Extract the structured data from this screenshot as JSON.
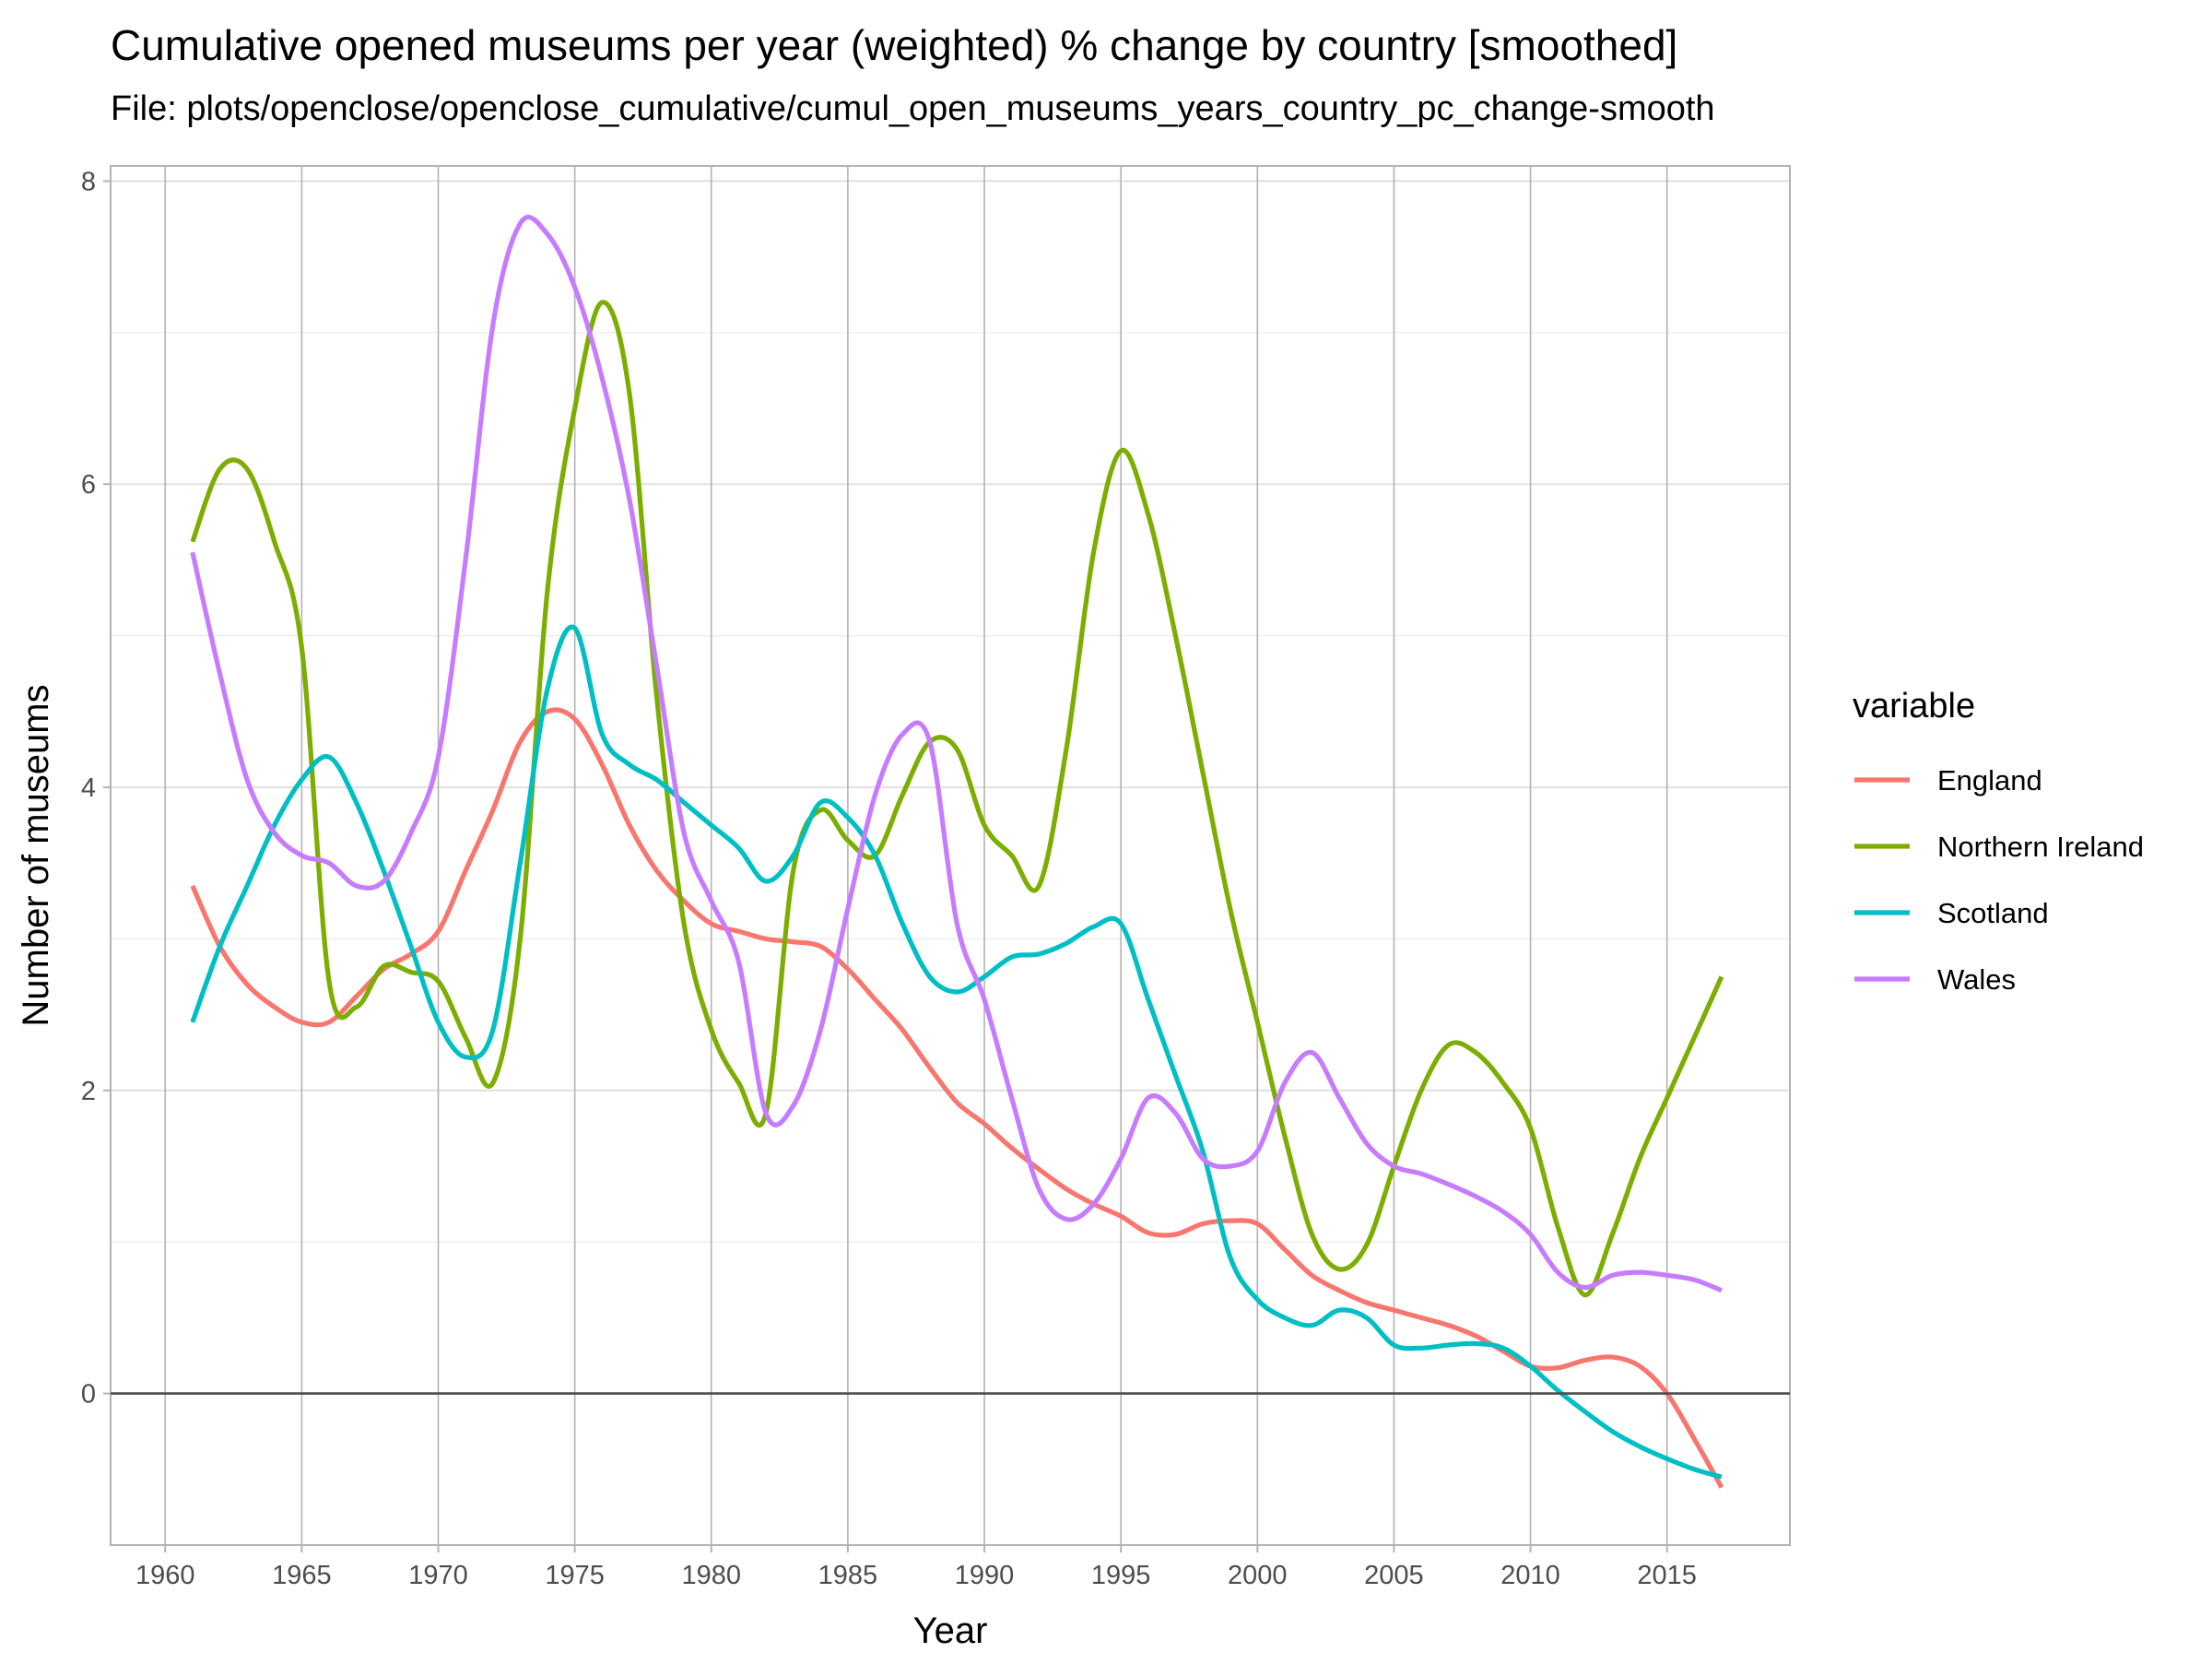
{
  "chart_data": {
    "type": "line",
    "title": "Cumulative opened museums per year (weighted) % change by country [smoothed]",
    "subtitle": "File: plots/openclose/openclose_cumulative/cumul_open_museums_years_country_pc_change-smooth",
    "xlabel": "Year",
    "ylabel": "Number of museums",
    "xlim": [
      1958,
      2019.5
    ],
    "ylim": [
      -1.0,
      8.1
    ],
    "x_ticks": [
      1960,
      1965,
      1970,
      1975,
      1980,
      1985,
      1990,
      1995,
      2000,
      2005,
      2010,
      2015
    ],
    "y_ticks": [
      0,
      2,
      4,
      6,
      8
    ],
    "grid": true,
    "legend": {
      "title": "variable",
      "position": "right"
    },
    "series": [
      {
        "name": "England",
        "color": "#F8766D",
        "x": [
          1961,
          1962,
          1963,
          1964,
          1965,
          1966,
          1967,
          1968,
          1969,
          1970,
          1971,
          1972,
          1973,
          1974,
          1975,
          1976,
          1977,
          1978,
          1979,
          1980,
          1981,
          1982,
          1983,
          1984,
          1985,
          1986,
          1987,
          1988,
          1989,
          1990,
          1991,
          1992,
          1993,
          1994,
          1995,
          1996,
          1997,
          1998,
          1999,
          2000,
          2001,
          2002,
          2003,
          2004,
          2005,
          2006,
          2007,
          2008,
          2009,
          2010,
          2011,
          2012,
          2013,
          2014,
          2015,
          2016,
          2017
        ],
        "y": [
          3.35,
          2.95,
          2.7,
          2.55,
          2.45,
          2.45,
          2.62,
          2.8,
          2.9,
          3.05,
          3.45,
          3.85,
          4.3,
          4.5,
          4.45,
          4.15,
          3.75,
          3.45,
          3.25,
          3.1,
          3.05,
          3.0,
          2.98,
          2.95,
          2.8,
          2.6,
          2.4,
          2.15,
          1.92,
          1.78,
          1.62,
          1.48,
          1.35,
          1.25,
          1.17,
          1.06,
          1.05,
          1.12,
          1.14,
          1.12,
          0.95,
          0.78,
          0.68,
          0.6,
          0.55,
          0.5,
          0.45,
          0.38,
          0.28,
          0.18,
          0.17,
          0.22,
          0.24,
          0.18,
          0.0,
          -0.3,
          -0.62
        ]
      },
      {
        "name": "Northern Ireland",
        "color": "#7CAE00",
        "x": [
          1961,
          1962,
          1963,
          1964,
          1965,
          1966,
          1967,
          1968,
          1969,
          1970,
          1971,
          1972,
          1973,
          1974,
          1975,
          1976,
          1977,
          1978,
          1979,
          1980,
          1981,
          1982,
          1983,
          1984,
          1985,
          1986,
          1987,
          1988,
          1989,
          1990,
          1991,
          1992,
          1993,
          1994,
          1995,
          1996,
          1997,
          1998,
          1999,
          2000,
          2001,
          2002,
          2003,
          2004,
          2005,
          2006,
          2007,
          2008,
          2009,
          2010,
          2011,
          2012,
          2013,
          2014,
          2015,
          2016,
          2017
        ],
        "y": [
          5.62,
          6.1,
          6.1,
          5.62,
          4.92,
          2.72,
          2.55,
          2.82,
          2.78,
          2.72,
          2.35,
          2.05,
          3.0,
          5.3,
          6.5,
          7.2,
          6.6,
          4.6,
          3.1,
          2.4,
          2.05,
          1.85,
          3.45,
          3.85,
          3.65,
          3.55,
          3.95,
          4.3,
          4.25,
          3.75,
          3.55,
          3.35,
          4.25,
          5.55,
          6.22,
          5.8,
          5.0,
          4.1,
          3.2,
          2.45,
          1.7,
          1.05,
          0.82,
          0.98,
          1.5,
          2.0,
          2.3,
          2.25,
          2.05,
          1.75,
          1.1,
          0.65,
          1.05,
          1.55,
          1.95,
          2.35,
          2.75
        ]
      },
      {
        "name": "Scotland",
        "color": "#00BFC4",
        "x": [
          1961,
          1962,
          1963,
          1964,
          1965,
          1966,
          1967,
          1968,
          1969,
          1970,
          1971,
          1972,
          1973,
          1974,
          1975,
          1976,
          1977,
          1978,
          1979,
          1980,
          1981,
          1982,
          1983,
          1984,
          1985,
          1986,
          1987,
          1988,
          1989,
          1990,
          1991,
          1992,
          1993,
          1994,
          1995,
          1996,
          1997,
          1998,
          1999,
          2000,
          2001,
          2002,
          2003,
          2004,
          2005,
          2006,
          2007,
          2008,
          2009,
          2010,
          2011,
          2012,
          2013,
          2014,
          2015,
          2016,
          2017
        ],
        "y": [
          2.45,
          2.95,
          3.35,
          3.75,
          4.05,
          4.2,
          3.9,
          3.45,
          2.95,
          2.45,
          2.22,
          2.4,
          3.5,
          4.65,
          5.05,
          4.35,
          4.15,
          4.05,
          3.9,
          3.75,
          3.6,
          3.38,
          3.55,
          3.9,
          3.8,
          3.55,
          3.1,
          2.75,
          2.65,
          2.75,
          2.88,
          2.9,
          2.97,
          3.08,
          3.1,
          2.6,
          2.1,
          1.6,
          0.9,
          0.62,
          0.5,
          0.45,
          0.55,
          0.5,
          0.32,
          0.3,
          0.32,
          0.33,
          0.3,
          0.18,
          0.02,
          -0.12,
          -0.25,
          -0.35,
          -0.43,
          -0.5,
          -0.55
        ]
      },
      {
        "name": "Wales",
        "color": "#C77CFF",
        "x": [
          1961,
          1962,
          1963,
          1964,
          1965,
          1966,
          1967,
          1968,
          1969,
          1970,
          1971,
          1972,
          1973,
          1974,
          1975,
          1976,
          1977,
          1978,
          1979,
          1980,
          1981,
          1982,
          1983,
          1984,
          1985,
          1986,
          1987,
          1988,
          1989,
          1990,
          1991,
          1992,
          1993,
          1994,
          1995,
          1996,
          1997,
          1998,
          1999,
          2000,
          2001,
          2002,
          2003,
          2004,
          2005,
          2006,
          2007,
          2008,
          2009,
          2010,
          2011,
          2012,
          2013,
          2014,
          2015,
          2016,
          2017
        ],
        "y": [
          5.55,
          4.75,
          4.05,
          3.7,
          3.55,
          3.5,
          3.35,
          3.38,
          3.7,
          4.2,
          5.5,
          7.05,
          7.72,
          7.65,
          7.3,
          6.7,
          5.9,
          4.8,
          3.7,
          3.25,
          2.85,
          1.85,
          1.9,
          2.4,
          3.2,
          3.95,
          4.35,
          4.3,
          3.1,
          2.6,
          1.95,
          1.35,
          1.15,
          1.25,
          1.55,
          1.95,
          1.85,
          1.55,
          1.5,
          1.6,
          2.05,
          2.25,
          1.95,
          1.65,
          1.5,
          1.45,
          1.38,
          1.3,
          1.2,
          1.05,
          0.8,
          0.7,
          0.78,
          0.8,
          0.78,
          0.75,
          0.68
        ]
      }
    ]
  }
}
